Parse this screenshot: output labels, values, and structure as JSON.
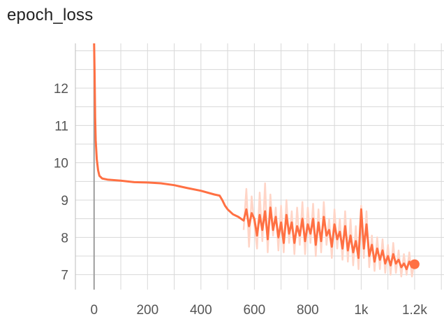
{
  "chart_data": {
    "type": "line",
    "title": "epoch_loss",
    "xlabel": "",
    "ylabel": "",
    "xlim": [
      -70,
      1310
    ],
    "ylim": [
      6.6,
      13.2
    ],
    "grid": true,
    "x_ticks": [
      0,
      200,
      400,
      600,
      800,
      1000,
      1200
    ],
    "x_tick_labels": [
      "0",
      "200",
      "400",
      "600",
      "800",
      "1k",
      "1.2k"
    ],
    "y_ticks": [
      7,
      8,
      9,
      10,
      11,
      12
    ],
    "y_tick_labels": [
      "7",
      "8",
      "9",
      "10",
      "11",
      "12"
    ],
    "colors": {
      "smoothed": "#ff7043",
      "raw": "#ffd5c7",
      "zero_line": "#9e9e9e",
      "grid": "#d8d8d8"
    },
    "series": [
      {
        "role": "smoothed",
        "x": [
          0,
          2,
          4,
          6,
          10,
          15,
          20,
          30,
          50,
          100,
          150,
          200,
          250,
          300,
          350,
          400,
          450,
          470,
          480,
          490,
          500,
          520,
          540,
          560,
          570,
          580,
          590,
          600,
          610,
          620,
          630,
          640,
          650,
          660,
          670,
          680,
          690,
          700,
          710,
          720,
          730,
          740,
          750,
          760,
          770,
          780,
          790,
          800,
          810,
          820,
          830,
          840,
          850,
          860,
          870,
          880,
          890,
          900,
          910,
          920,
          930,
          940,
          950,
          960,
          970,
          980,
          990,
          1000,
          1010,
          1020,
          1030,
          1040,
          1050,
          1060,
          1070,
          1080,
          1090,
          1100,
          1110,
          1120,
          1130,
          1140,
          1150,
          1160,
          1170,
          1180,
          1190,
          1200
        ],
        "y": [
          13.2,
          12.4,
          11.2,
          10.6,
          10.1,
          9.8,
          9.65,
          9.58,
          9.55,
          9.52,
          9.48,
          9.47,
          9.45,
          9.4,
          9.32,
          9.25,
          9.15,
          9.12,
          9.0,
          8.85,
          8.75,
          8.62,
          8.55,
          8.45,
          8.75,
          8.3,
          8.65,
          8.5,
          8.05,
          8.6,
          8.2,
          8.7,
          7.95,
          8.8,
          8.2,
          8.55,
          8.0,
          8.4,
          7.85,
          8.6,
          8.1,
          8.4,
          7.85,
          8.3,
          8.05,
          8.5,
          7.9,
          8.35,
          8.1,
          8.5,
          7.8,
          8.4,
          7.9,
          8.55,
          8.05,
          8.2,
          7.75,
          8.35,
          7.95,
          8.15,
          7.7,
          8.3,
          7.65,
          8.05,
          7.6,
          7.9,
          7.45,
          8.75,
          7.7,
          8.35,
          7.5,
          7.8,
          7.35,
          7.7,
          7.4,
          7.65,
          7.3,
          7.5,
          7.25,
          7.55,
          7.3,
          7.4,
          7.2,
          7.3,
          7.15,
          7.35,
          7.2,
          7.28
        ]
      },
      {
        "role": "raw",
        "x": [
          560,
          570,
          580,
          590,
          600,
          610,
          620,
          630,
          640,
          650,
          660,
          670,
          680,
          690,
          700,
          710,
          720,
          730,
          740,
          750,
          760,
          770,
          780,
          790,
          800,
          810,
          820,
          830,
          840,
          850,
          860,
          870,
          880,
          890,
          900,
          910,
          920,
          930,
          940,
          950,
          960,
          970,
          980,
          990,
          1000,
          1010,
          1020,
          1030,
          1040,
          1050,
          1060,
          1070,
          1080,
          1090,
          1100,
          1110,
          1120,
          1130,
          1140,
          1150,
          1160,
          1170,
          1180,
          1190,
          1200
        ],
        "y": [
          8.2,
          9.3,
          7.75,
          9.1,
          8.35,
          7.7,
          9.2,
          7.9,
          9.45,
          7.6,
          9.15,
          8.05,
          8.8,
          7.65,
          8.85,
          7.6,
          9.0,
          7.85,
          8.7,
          7.55,
          8.8,
          7.8,
          8.95,
          7.55,
          8.8,
          7.85,
          8.9,
          7.5,
          8.75,
          7.6,
          8.95,
          7.8,
          8.5,
          7.45,
          8.75,
          7.7,
          8.5,
          7.4,
          8.7,
          7.35,
          8.5,
          7.25,
          8.3,
          7.15,
          8.85,
          7.45,
          8.7,
          7.2,
          8.05,
          7.1,
          8.0,
          7.15,
          7.95,
          7.05,
          7.8,
          7.0,
          7.85,
          7.05,
          7.65,
          6.95,
          7.55,
          7.0,
          7.6,
          6.95,
          7.4
        ]
      }
    ]
  }
}
